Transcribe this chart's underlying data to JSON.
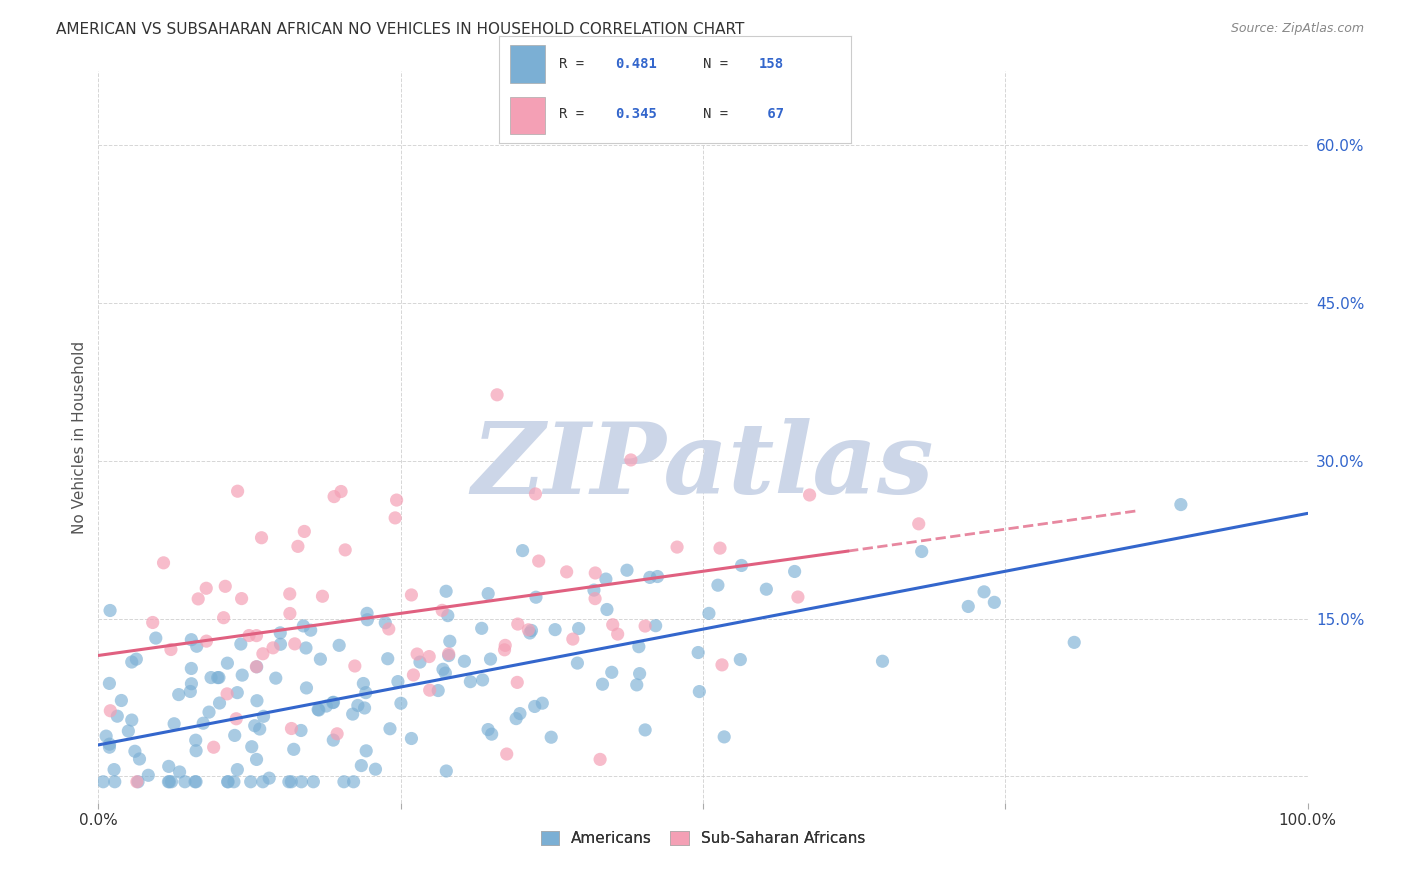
{
  "title": "AMERICAN VS SUBSAHARAN AFRICAN NO VEHICLES IN HOUSEHOLD CORRELATION CHART",
  "source": "Source: ZipAtlas.com",
  "ylabel_label": "No Vehicles in Household",
  "scatter_color_americans": "#7bafd4",
  "scatter_color_subsaharan": "#f4a0b5",
  "regression_color_americans": "#3366cc",
  "regression_color_subsaharan": "#e06080",
  "background_color": "#ffffff",
  "watermark_text": "ZIPatlas",
  "watermark_color": "#ccd6e8",
  "grid_color": "#cccccc",
  "xlim": [
    0.0,
    1.0
  ],
  "ylim": [
    -0.025,
    0.67
  ],
  "title_fontsize": 11,
  "source_fontsize": 9,
  "N_americans": 158,
  "N_subsaharan": 67,
  "R_americans": 0.481,
  "R_subsaharan": 0.345,
  "am_intercept": 0.03,
  "am_slope": 0.22,
  "ss_intercept": 0.115,
  "ss_slope": 0.16,
  "legend_text_color": "#3366cc",
  "axis_label_color": "#3366cc"
}
